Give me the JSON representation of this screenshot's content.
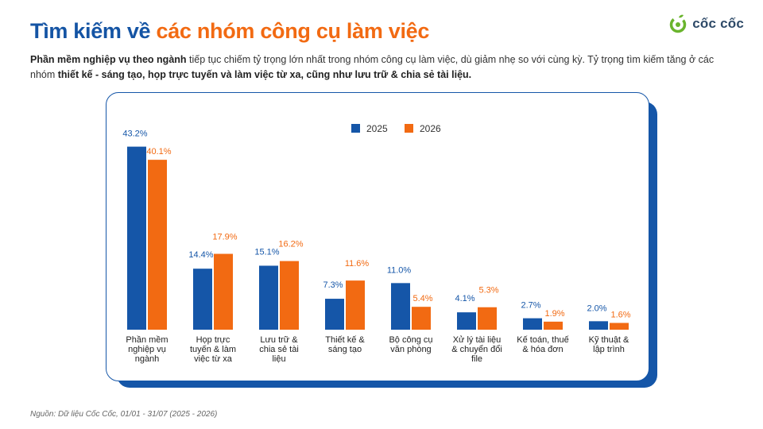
{
  "header": {
    "title_part1": "Tìm kiếm về",
    "title_part2": "các nhóm công cụ làm việc",
    "logo_text": "cốc cốc"
  },
  "subtitle": {
    "b1": "Phần mềm nghiệp vụ theo ngành",
    "t1": " tiếp tục chiếm tỷ trọng lớn nhất trong nhóm công cụ làm việc, dù giảm nhẹ so với cùng kỳ. Tỷ trọng tìm kiếm tăng ở các nhóm ",
    "b2": "thiết kế - sáng tạo, họp trực tuyến và làm việc từ xa, cũng như lưu trữ & chia sẻ tài liệu."
  },
  "source": "Nguồn: Dữ liệu Cốc Cốc, 01/01 - 31/07 (2025 - 2026)",
  "colors": {
    "s2025": "#1556a8",
    "s2026": "#f26a12",
    "brand_blue": "#1454a4",
    "brand_orange": "#f26a12"
  },
  "chart_data": {
    "type": "bar",
    "categories": [
      [
        "Phần mềm",
        "nghiệp vụ",
        "ngành"
      ],
      [
        "Họp trực",
        "tuyến & làm",
        "việc từ xa"
      ],
      [
        "Lưu trữ &",
        "chia sẻ tài",
        "liệu"
      ],
      [
        "Thiết kế &",
        "sáng tạo"
      ],
      [
        "Bộ công cụ",
        "văn phòng"
      ],
      [
        "Xử lý tài liệu",
        "& chuyển đổi",
        "file"
      ],
      [
        "Kế toán, thuế",
        "& hóa đơn"
      ],
      [
        "Kỹ thuật &",
        "lập trình"
      ]
    ],
    "series": [
      {
        "name": "2025",
        "values": [
          43.2,
          14.4,
          15.1,
          7.3,
          11.0,
          4.1,
          2.7,
          2.0
        ],
        "labels": [
          "43.2%",
          "14.4%",
          "15.1%",
          "7.3%",
          "11.0%",
          "4.1%",
          "2.7%",
          "2.0%"
        ]
      },
      {
        "name": "2026",
        "values": [
          40.1,
          17.9,
          16.2,
          11.6,
          5.4,
          5.3,
          1.9,
          1.6
        ],
        "labels": [
          "40.1%",
          "17.9%",
          "16.2%",
          "11.6%",
          "5.4%",
          "5.3%",
          "1.9%",
          "1.6%"
        ]
      }
    ],
    "ylim": [
      0,
      45
    ],
    "legend": "top-center",
    "grid": false,
    "xlabel": "",
    "ylabel": ""
  }
}
